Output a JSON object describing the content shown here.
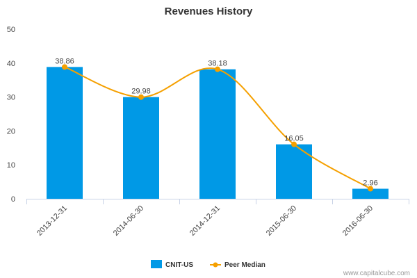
{
  "chart_data": {
    "type": "bar",
    "title": "Revenues History",
    "categories": [
      "2013-12-31",
      "2014-06-30",
      "2014-12-31",
      "2015-06-30",
      "2016-06-30"
    ],
    "series": [
      {
        "name": "CNIT-US",
        "type": "bar",
        "color": "#0099e6",
        "values": [
          38.86,
          29.98,
          38.18,
          16.05,
          2.96
        ]
      },
      {
        "name": "Peer Median",
        "type": "line",
        "color": "#f5a000",
        "values": [
          38.86,
          29.98,
          38.18,
          16.05,
          2.96
        ]
      }
    ],
    "data_labels": [
      "38.86",
      "29.98",
      "38.18",
      "16.05",
      "2.96"
    ],
    "ylim": [
      0,
      50
    ],
    "yticks": [
      "0",
      "10",
      "20",
      "30",
      "40",
      "50"
    ],
    "legend_position": "bottom-center"
  },
  "credit": "www.capitalcube.com"
}
